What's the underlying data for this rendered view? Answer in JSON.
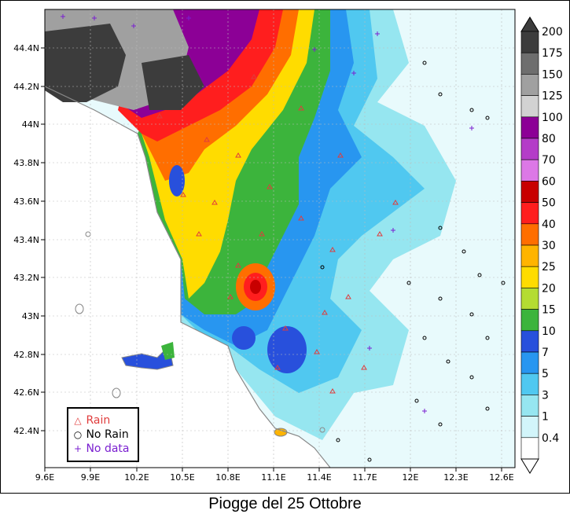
{
  "caption": "Piogge del 25 Ottobre",
  "x_axis": {
    "ticks": [
      "9.6E",
      "9.9E",
      "10.2E",
      "10.5E",
      "10.8E",
      "11.1E",
      "11.4E",
      "11.7E",
      "12E",
      "12.3E",
      "12.6E"
    ]
  },
  "y_axis": {
    "ticks": [
      "44.4N",
      "44.2N",
      "44N",
      "43.8N",
      "43.6N",
      "43.4N",
      "43.2N",
      "43N",
      "42.8N",
      "42.6N",
      "42.4N"
    ]
  },
  "colorbar": {
    "labels": [
      "200",
      "175",
      "150",
      "125",
      "100",
      "80",
      "70",
      "60",
      "50",
      "40",
      "30",
      "25",
      "20",
      "15",
      "10",
      "7",
      "5",
      "3",
      "1",
      "0.4"
    ],
    "colors": [
      "#3c3c3c",
      "#6e6e6e",
      "#a0a0a0",
      "#d2d2d2",
      "#8c0096",
      "#b43cc8",
      "#dc78e6",
      "#c80000",
      "#ff1e1e",
      "#ff6e00",
      "#ffb400",
      "#ffdc00",
      "#b4dc32",
      "#3cb43c",
      "#2850dc",
      "#2896f0",
      "#50c8f0",
      "#96e6f0",
      "#d2f5fa",
      "#ffffff"
    ]
  },
  "key": {
    "rain": {
      "symbol": "△",
      "label": "Rain",
      "color": "#e03c3c"
    },
    "no_rain": {
      "symbol": "○",
      "label": "No Rain",
      "color": "#000000"
    },
    "no_data": {
      "symbol": "+",
      "label": "No data",
      "color": "#7a1fd0"
    }
  }
}
